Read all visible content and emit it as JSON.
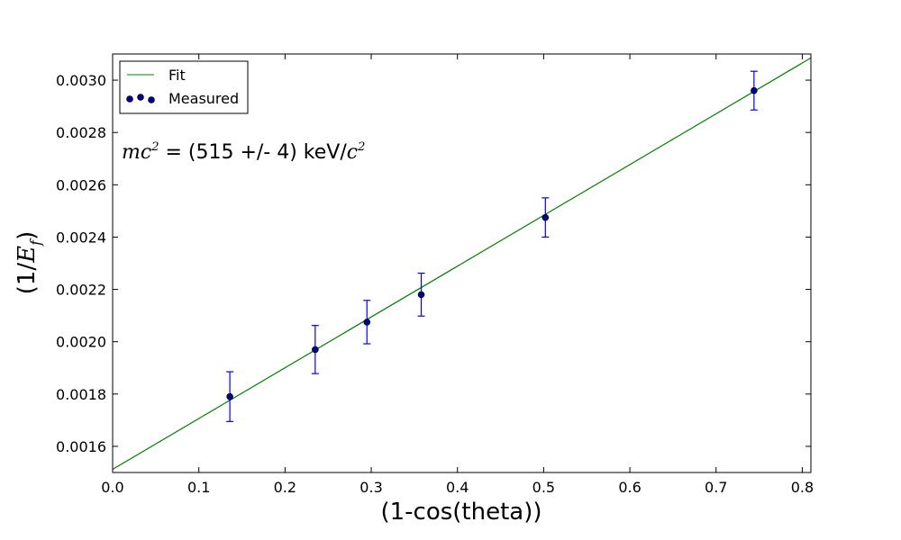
{
  "chart_data": {
    "type": "scatter",
    "title": "",
    "xlabel": "(1-cos(theta))",
    "ylabel": {
      "prefix": "(1/",
      "var": "E",
      "sub": "f",
      "suffix": ")"
    },
    "xlim": [
      0.0,
      0.81
    ],
    "ylim": [
      0.0015,
      0.0031
    ],
    "x_ticks": [
      0.0,
      0.1,
      0.2,
      0.3,
      0.4,
      0.5,
      0.6,
      0.7,
      0.8
    ],
    "x_tick_labels": [
      "0.0",
      "0.1",
      "0.2",
      "0.3",
      "0.4",
      "0.5",
      "0.6",
      "0.7",
      "0.8"
    ],
    "y_ticks": [
      0.0016,
      0.0018,
      0.002,
      0.0022,
      0.0024,
      0.0026,
      0.0028,
      0.003
    ],
    "y_tick_labels": [
      "0.0016",
      "0.0018",
      "0.0020",
      "0.0022",
      "0.0024",
      "0.0026",
      "0.0028",
      "0.0030"
    ],
    "grid": false,
    "legend_position": "top-left",
    "series": [
      {
        "name": "Measured",
        "kind": "scatter_errorbar",
        "color": "#00008b",
        "errorbar_color": "#0000ff",
        "x": [
          0.136,
          0.235,
          0.295,
          0.358,
          0.502,
          0.744
        ],
        "y": [
          0.00179,
          0.00197,
          0.002075,
          0.00218,
          0.002475,
          0.00296
        ],
        "yerr": [
          9.5e-05,
          9.2e-05,
          8.3e-05,
          8.2e-05,
          7.5e-05,
          7.4e-05
        ]
      },
      {
        "name": "Fit",
        "kind": "line",
        "color": "#008000",
        "x": [
          0.0,
          0.81
        ],
        "y": [
          0.001512,
          0.003085
        ]
      }
    ],
    "annotation": {
      "lhs_var": "mc",
      "lhs_sup": "2",
      "middle": " = (515 +/- 4) keV/",
      "rhs_var": "c",
      "rhs_sup": "2"
    }
  }
}
